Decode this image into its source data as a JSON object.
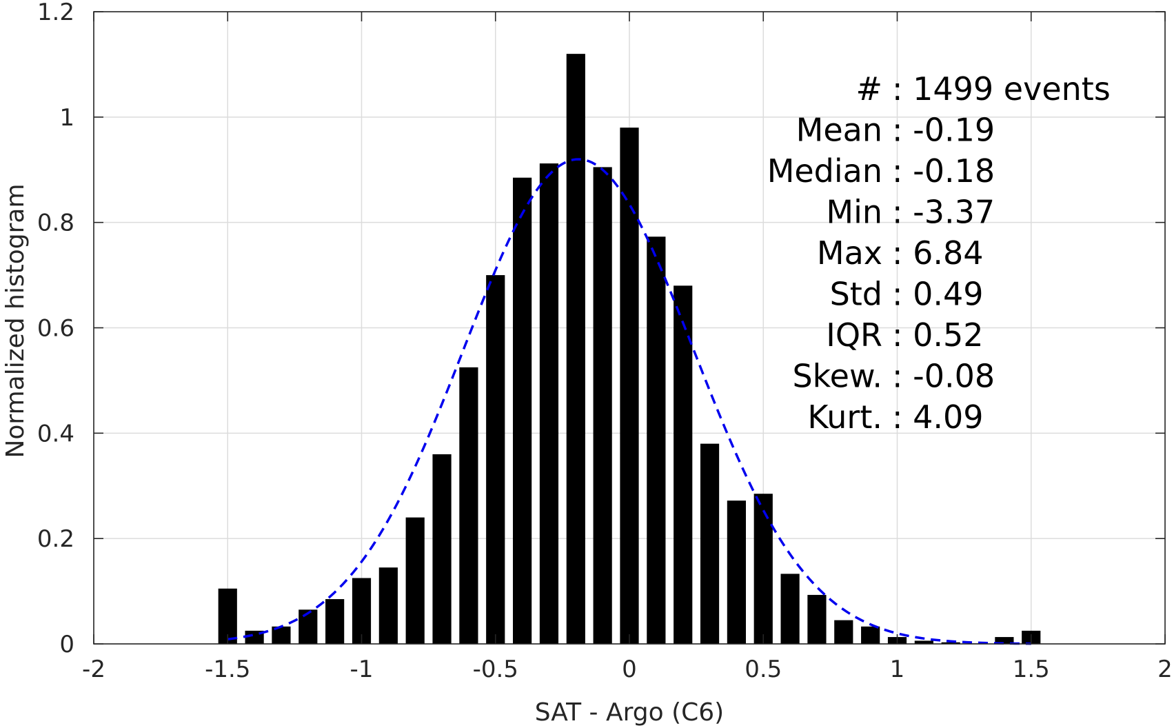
{
  "chart_data": {
    "type": "bar",
    "xlabel": "SAT - Argo (C6)",
    "ylabel": "Normalized histogram",
    "xlim": [
      -2,
      2
    ],
    "ylim": [
      0,
      1.2
    ],
    "xticks": [
      "-2",
      "-1.5",
      "-1",
      "-0.5",
      "0",
      "0.5",
      "1",
      "1.5",
      "2"
    ],
    "yticks": [
      "0",
      "0.2",
      "0.4",
      "0.6",
      "0.8",
      "1",
      "1.2"
    ],
    "grid": true,
    "bar_color": "#000000",
    "bar_width": 0.07,
    "bins": [
      {
        "x": -1.5,
        "y": 0.105
      },
      {
        "x": -1.4,
        "y": 0.025
      },
      {
        "x": -1.3,
        "y": 0.033
      },
      {
        "x": -1.2,
        "y": 0.065
      },
      {
        "x": -1.1,
        "y": 0.085
      },
      {
        "x": -1.0,
        "y": 0.125
      },
      {
        "x": -0.9,
        "y": 0.145
      },
      {
        "x": -0.8,
        "y": 0.24
      },
      {
        "x": -0.7,
        "y": 0.36
      },
      {
        "x": -0.6,
        "y": 0.525
      },
      {
        "x": -0.5,
        "y": 0.7
      },
      {
        "x": -0.4,
        "y": 0.885
      },
      {
        "x": -0.3,
        "y": 0.912
      },
      {
        "x": -0.2,
        "y": 1.12
      },
      {
        "x": -0.1,
        "y": 0.905
      },
      {
        "x": 0.0,
        "y": 0.98
      },
      {
        "x": 0.1,
        "y": 0.773
      },
      {
        "x": 0.2,
        "y": 0.68
      },
      {
        "x": 0.3,
        "y": 0.38
      },
      {
        "x": 0.4,
        "y": 0.272
      },
      {
        "x": 0.5,
        "y": 0.285
      },
      {
        "x": 0.6,
        "y": 0.133
      },
      {
        "x": 0.7,
        "y": 0.093
      },
      {
        "x": 0.8,
        "y": 0.045
      },
      {
        "x": 0.9,
        "y": 0.033
      },
      {
        "x": 1.0,
        "y": 0.013
      },
      {
        "x": 1.1,
        "y": 0.006
      },
      {
        "x": 1.2,
        "y": 0.003
      },
      {
        "x": 1.3,
        "y": 0.001
      },
      {
        "x": 1.4,
        "y": 0.013
      },
      {
        "x": 1.5,
        "y": 0.025
      }
    ],
    "fit_curve": {
      "style": "dashed",
      "color": "#0000ee",
      "type": "gaussian",
      "mean": -0.19,
      "std": 0.43,
      "peak": 0.92,
      "x_range": [
        -1.5,
        1.5
      ]
    },
    "stats": [
      {
        "label": "#  ",
        "value": ": 1499 events"
      },
      {
        "label": "Mean",
        "value": ": -0.19"
      },
      {
        "label": "Median",
        "value": ": -0.18"
      },
      {
        "label": "Min",
        "value": ": -3.37"
      },
      {
        "label": "Max",
        "value": ": 6.84"
      },
      {
        "label": "Std",
        "value": ": 0.49"
      },
      {
        "label": "IQR",
        "value": ": 0.52"
      },
      {
        "label": "Skew.",
        "value": ": -0.08"
      },
      {
        "label": "Kurt.",
        "value": ": 4.09"
      }
    ]
  }
}
